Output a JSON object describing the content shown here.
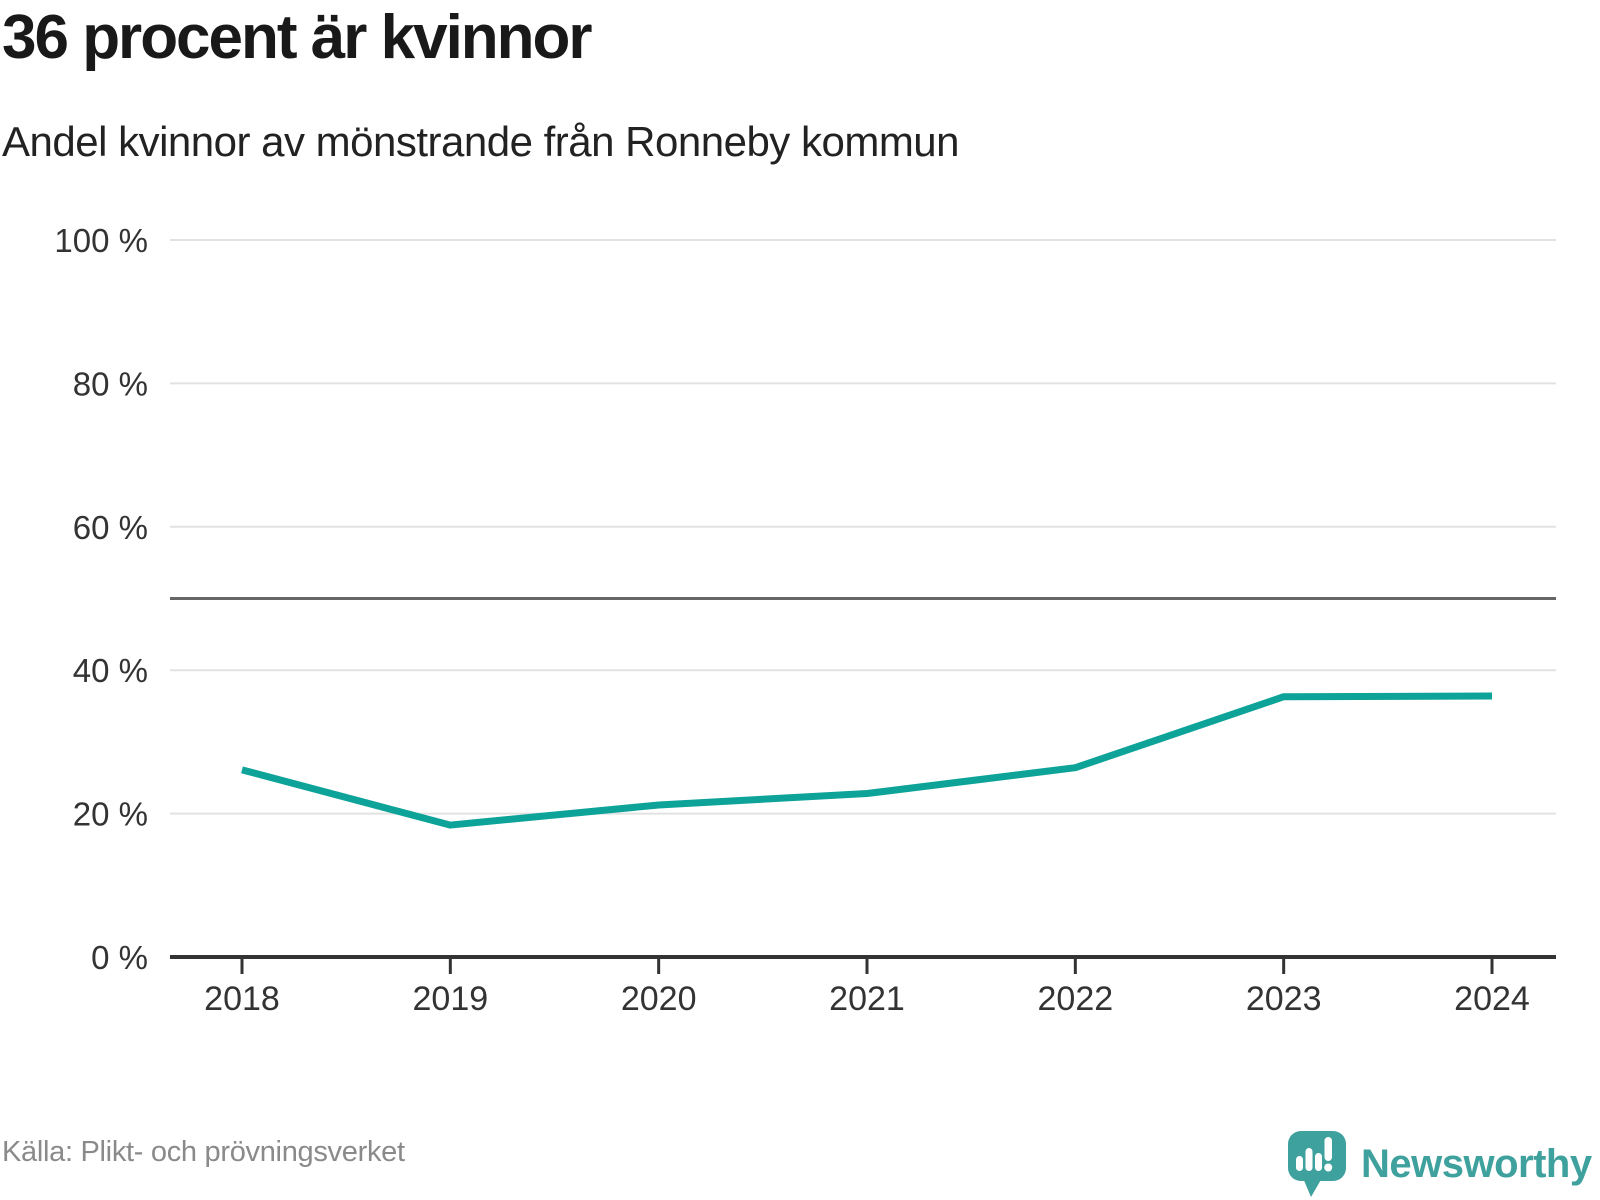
{
  "header": {
    "title": "36 procent är kvinnor",
    "subtitle": "Andel kvinnor av mönstrande från Ronneby kommun"
  },
  "chart_data": {
    "type": "line",
    "title": "36 procent är kvinnor",
    "subtitle": "Andel kvinnor av mönstrande från Ronneby kommun",
    "x": [
      2018,
      2019,
      2020,
      2021,
      2022,
      2023,
      2024
    ],
    "series": [
      {
        "name": "Andel kvinnor av mönstrande",
        "values": [
          26.1,
          18.4,
          21.2,
          22.8,
          26.4,
          36.3,
          36.4
        ]
      }
    ],
    "ylim": [
      0,
      100
    ],
    "yticks": [
      0,
      20,
      40,
      60,
      80,
      100
    ],
    "ytick_suffix": " %",
    "reference_line": 50,
    "grid": true,
    "legend": "none",
    "line_color": "#0da398",
    "axis_color": "#333333",
    "grid_color": "#e2e2e2",
    "reference_line_color": "#666666",
    "tick_label_color": "#333333"
  },
  "footer": {
    "source": "Källa: Plikt- och prövningsverket",
    "logo_text": "Newsworthy"
  },
  "colors": {
    "accent_teal": "#0da398",
    "logo_teal": "#3fa19d",
    "title_text": "#191919",
    "source_text": "#8a8a8a"
  }
}
